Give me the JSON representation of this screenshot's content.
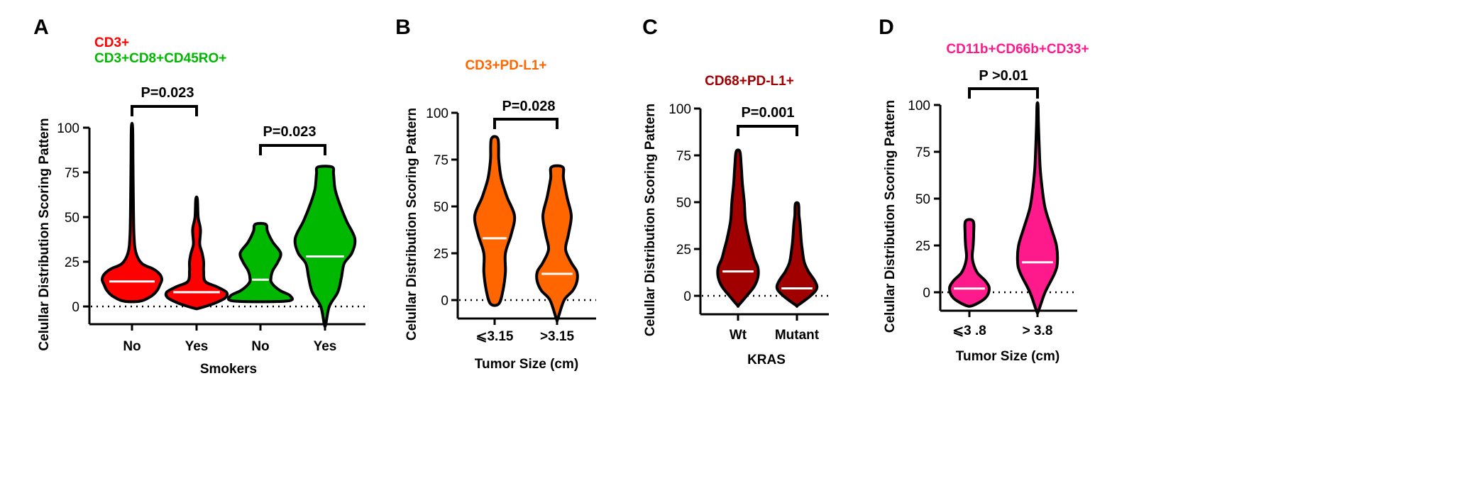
{
  "chart_data": [
    {
      "panel_label": "A",
      "type": "violin",
      "legend": [
        {
          "label": "CD3+",
          "color": "#ff0000"
        },
        {
          "label": "CD3+CD8+CD45RO+",
          "color": "#00b800"
        }
      ],
      "title": "",
      "xlabel": "Smokers",
      "ylabel": "Celullar Distribution Scoring Pattern",
      "ylim": [
        -10,
        100
      ],
      "yticks": [
        "0",
        "25",
        "50",
        "75",
        "100"
      ],
      "categories": [
        "No",
        "Yes",
        "No",
        "Yes"
      ],
      "series": [
        {
          "category": "No",
          "color": "#ff0000",
          "median": 14,
          "min": 3,
          "max": 100,
          "profile": [
            [
              3,
              13
            ],
            [
              6,
              30
            ],
            [
              9,
              38
            ],
            [
              12,
              42
            ],
            [
              15,
              45
            ],
            [
              18,
              42
            ],
            [
              21,
              32
            ],
            [
              24,
              15
            ],
            [
              30,
              6
            ],
            [
              40,
              3
            ],
            [
              60,
              2
            ],
            [
              80,
              1.5
            ],
            [
              100,
              1
            ]
          ]
        },
        {
          "category": "Yes",
          "color": "#ff0000",
          "median": 8,
          "min": -1,
          "max": 60,
          "profile": [
            [
              -1,
              3
            ],
            [
              2,
              24
            ],
            [
              5,
              37
            ],
            [
              8,
              38
            ],
            [
              11,
              26
            ],
            [
              14,
              11
            ],
            [
              20,
              9
            ],
            [
              25,
              9
            ],
            [
              30,
              7
            ],
            [
              35,
              4
            ],
            [
              43,
              5
            ],
            [
              50,
              2
            ],
            [
              60,
              1
            ]
          ]
        },
        {
          "category": "No",
          "color": "#00b800",
          "median": 15,
          "min": 3,
          "max": 46,
          "profile": [
            [
              3,
              30
            ],
            [
              6,
              34
            ],
            [
              9,
              22
            ],
            [
              13,
              13
            ],
            [
              16,
              12
            ],
            [
              20,
              14
            ],
            [
              25,
              20
            ],
            [
              30,
              23
            ],
            [
              36,
              14
            ],
            [
              42,
              8
            ],
            [
              46,
              6
            ]
          ]
        },
        {
          "category": "Yes",
          "color": "#00b800",
          "median": 28,
          "min": -10,
          "max": 78,
          "profile": [
            [
              -10,
              1
            ],
            [
              0,
              6
            ],
            [
              8,
              18
            ],
            [
              16,
              23
            ],
            [
              24,
              27
            ],
            [
              30,
              38
            ],
            [
              38,
              42
            ],
            [
              48,
              30
            ],
            [
              58,
              20
            ],
            [
              66,
              14
            ],
            [
              74,
              12
            ],
            [
              78,
              10
            ]
          ]
        }
      ],
      "comparisons": [
        {
          "label": "P=0.023",
          "from": 0,
          "to": 1
        },
        {
          "label": "P=0.023",
          "from": 2,
          "to": 3
        }
      ]
    },
    {
      "panel_label": "B",
      "type": "violin",
      "legend": [
        {
          "label": "CD3+PD-L1+",
          "color": "#ff6600"
        }
      ],
      "title": "",
      "xlabel": "Tumor Size (cm)",
      "ylabel": "Celullar Distribution Scoring Pattern",
      "ylim": [
        -10,
        100
      ],
      "yticks": [
        "0",
        "25",
        "50",
        "75",
        "100"
      ],
      "categories": [
        "⩽3.15",
        ">3.15"
      ],
      "series": [
        {
          "category": "⩽3.15",
          "color": "#ff6600",
          "median": 33,
          "min": -2,
          "max": 86,
          "profile": [
            [
              -2,
              10
            ],
            [
              5,
              20
            ],
            [
              15,
              26
            ],
            [
              25,
              26
            ],
            [
              35,
              40
            ],
            [
              45,
              48
            ],
            [
              55,
              30
            ],
            [
              65,
              16
            ],
            [
              75,
              10
            ],
            [
              86,
              8
            ]
          ]
        },
        {
          "category": ">3.15",
          "color": "#ff6600",
          "median": 14,
          "min": -10,
          "max": 71,
          "profile": [
            [
              -10,
              1
            ],
            [
              0,
              10
            ],
            [
              5,
              22
            ],
            [
              10,
              28
            ],
            [
              15,
              28
            ],
            [
              20,
              20
            ],
            [
              27,
              12
            ],
            [
              35,
              16
            ],
            [
              45,
              20
            ],
            [
              55,
              14
            ],
            [
              65,
              9
            ],
            [
              71,
              8
            ]
          ]
        }
      ],
      "comparisons": [
        {
          "label": "P=0.028",
          "from": 0,
          "to": 1
        }
      ]
    },
    {
      "panel_label": "C",
      "type": "violin",
      "legend": [
        {
          "label": "CD68+PD-L1+",
          "color": "#a00000"
        }
      ],
      "title": "",
      "xlabel": "KRAS",
      "ylabel": "Celullar Distribution Scoring Pattern",
      "ylim": [
        -5,
        100
      ],
      "yticks": [
        "0",
        "25",
        "50",
        "75",
        "100"
      ],
      "categories": [
        "Wt",
        "Mutant"
      ],
      "series": [
        {
          "category": "Wt",
          "color": "#a00000",
          "median": 13,
          "min": -5,
          "max": 77,
          "profile": [
            [
              -5,
              1
            ],
            [
              0,
              14
            ],
            [
              5,
              26
            ],
            [
              10,
              32
            ],
            [
              15,
              32
            ],
            [
              20,
              26
            ],
            [
              25,
              22
            ],
            [
              30,
              18
            ],
            [
              40,
              12
            ],
            [
              50,
              10
            ],
            [
              60,
              7
            ],
            [
              70,
              5
            ],
            [
              77,
              3
            ]
          ]
        },
        {
          "category": "Mutant",
          "color": "#a00000",
          "median": 4,
          "min": -5,
          "max": 49,
          "profile": [
            [
              -5,
              2
            ],
            [
              0,
              26
            ],
            [
              4,
              38
            ],
            [
              8,
              34
            ],
            [
              13,
              22
            ],
            [
              18,
              14
            ],
            [
              25,
              10
            ],
            [
              30,
              8
            ],
            [
              38,
              6
            ],
            [
              43,
              4
            ],
            [
              49,
              3
            ]
          ]
        }
      ],
      "comparisons": [
        {
          "label": "P=0.001",
          "from": 0,
          "to": 1
        }
      ]
    },
    {
      "panel_label": "D",
      "type": "violin",
      "legend": [
        {
          "label": "CD11b+CD66b+CD33+",
          "color": "#ff1a8c"
        }
      ],
      "title": "",
      "xlabel": "Tumor Size (cm)",
      "ylabel": "Celullar Distribution Scoring Pattern",
      "ylim": [
        -10,
        100
      ],
      "yticks": [
        "0",
        "25",
        "50",
        "75",
        "100"
      ],
      "categories": [
        "⩽3 .8",
        "> 3.8"
      ],
      "series": [
        {
          "category": "⩽3 .8",
          "color": "#ff1a8c",
          "median": 2,
          "min": -7,
          "max": 38,
          "profile": [
            [
              -7,
              8
            ],
            [
              -3,
              34
            ],
            [
              2,
              42
            ],
            [
              6,
              34
            ],
            [
              10,
              18
            ],
            [
              14,
              10
            ],
            [
              19,
              6
            ],
            [
              25,
              8
            ],
            [
              31,
              9
            ],
            [
              38,
              8
            ]
          ]
        },
        {
          "category": "> 3.8",
          "color": "#ff1a8c",
          "median": 16,
          "min": -10,
          "max": 100,
          "profile": [
            [
              -10,
              2
            ],
            [
              0,
              16
            ],
            [
              10,
              36
            ],
            [
              16,
              42
            ],
            [
              25,
              40
            ],
            [
              35,
              28
            ],
            [
              45,
              16
            ],
            [
              55,
              10
            ],
            [
              65,
              6
            ],
            [
              75,
              4
            ],
            [
              90,
              2
            ],
            [
              100,
              1
            ]
          ]
        }
      ],
      "comparisons": [
        {
          "label": "P >0.01",
          "from": 0,
          "to": 1
        }
      ]
    }
  ]
}
